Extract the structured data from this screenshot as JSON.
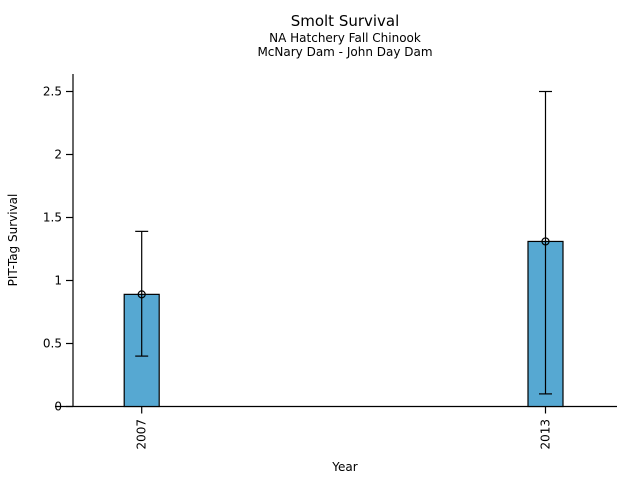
{
  "chart_data": {
    "type": "bar",
    "title": "Smolt Survival",
    "subtitle": [
      "NA Hatchery Fall Chinook",
      "McNary Dam - John Day Dam"
    ],
    "xlabel": "Year",
    "ylabel": "PIT-Tag Survival",
    "categories": [
      "2007",
      "2013"
    ],
    "values": [
      0.89,
      1.31
    ],
    "error_low": [
      0.4,
      0.1
    ],
    "error_high": [
      1.39,
      2.5
    ],
    "ylim": [
      0,
      2.5
    ],
    "yticks": [
      0,
      0.5,
      1,
      1.5,
      2,
      2.5
    ],
    "ytick_labels": [
      "0",
      "0.5",
      "1",
      "1.5",
      "2",
      "2.5"
    ],
    "marker": "open-circle",
    "bar_color": "#56A8D2",
    "bar_edge_color": "#000000",
    "axis_color": "#000000",
    "text_color": "#000000",
    "background": "#FFFFFF",
    "grid": false,
    "legend": null
  }
}
